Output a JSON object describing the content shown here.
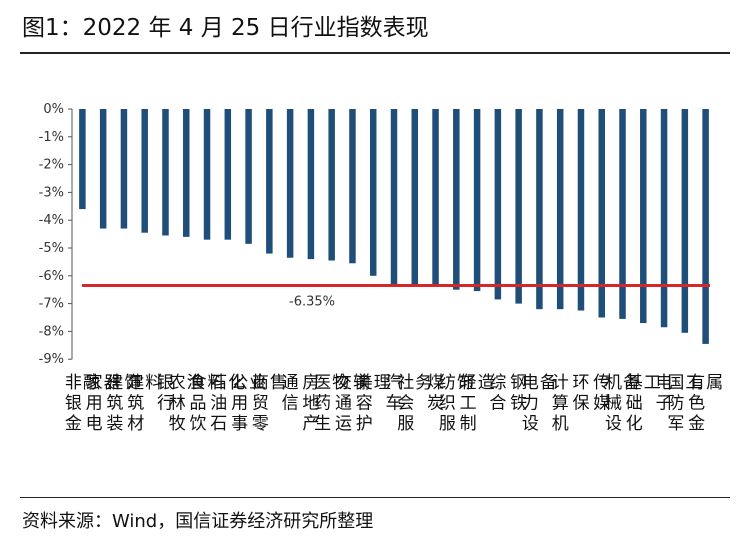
{
  "title": "图1：2022 年 4 月 25 日行业指数表现",
  "source": "资料来源：Wind，国信证券经济研究所整理",
  "chart_data": {
    "type": "bar",
    "unit": "%",
    "categories": [
      "非银金融",
      "家用电器",
      "建筑装饰",
      "建筑材料",
      "银行",
      "农林牧渔",
      "食品饮料",
      "石油石化",
      "公用事业",
      "商贸零售",
      "通信",
      "房地产",
      "医药生物",
      "交通运输",
      "美容护理",
      "汽车",
      "社会服务",
      "煤炭",
      "纺织服饰",
      "轻工制造",
      "综合",
      "钢铁",
      "电力设备",
      "计算机",
      "环保",
      "传媒",
      "机械设备",
      "基础化工",
      "电子",
      "国防军工",
      "有色金属"
    ],
    "values": [
      -3.6,
      -4.3,
      -4.3,
      -4.45,
      -4.55,
      -4.6,
      -4.7,
      -4.7,
      -4.85,
      -5.2,
      -5.35,
      -5.4,
      -5.45,
      -5.55,
      -6.0,
      -6.3,
      -6.3,
      -6.4,
      -6.5,
      -6.55,
      -6.85,
      -7.0,
      -7.2,
      -7.2,
      -7.25,
      -7.5,
      -7.55,
      -7.7,
      -7.85,
      -8.05,
      -8.45
    ],
    "reference_line": {
      "value": -6.35,
      "label": "-6.35%",
      "color": "#d62728"
    },
    "bar_color": "#1f4e79",
    "ylim": [
      -9,
      0
    ],
    "yticks": [
      "0%",
      "-1%",
      "-2%",
      "-3%",
      "-4%",
      "-5%",
      "-6%",
      "-7%",
      "-8%",
      "-9%"
    ],
    "grid": false,
    "legend": "none"
  }
}
